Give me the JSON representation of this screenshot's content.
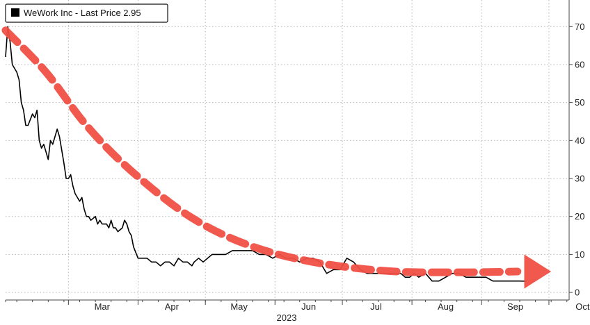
{
  "chart_data": {
    "type": "line",
    "legend": {
      "label": "WeWork Inc - Last Price 2.95",
      "position": "top-left"
    },
    "x_axis": {
      "start": "2023-02-01",
      "end": "2023-10-10",
      "ticks": [
        {
          "label": "Mar",
          "date": "2023-03-01"
        },
        {
          "label": "Apr",
          "date": "2023-04-01"
        },
        {
          "label": "May",
          "date": "2023-05-01"
        },
        {
          "label": "Jun",
          "date": "2023-06-01"
        },
        {
          "label": "Jul",
          "date": "2023-07-01"
        },
        {
          "label": "Aug",
          "date": "2023-08-01"
        },
        {
          "label": "Sep",
          "date": "2023-09-01"
        },
        {
          "label": "Oct",
          "date": "2023-10-01"
        }
      ],
      "year_label": "2023"
    },
    "y_axis": {
      "position": "right",
      "ylim": [
        -2,
        77
      ],
      "ticks": [
        0,
        10,
        20,
        30,
        40,
        50,
        60,
        70
      ]
    },
    "grid": true,
    "series": [
      {
        "name": "WeWork Inc - Last Price 2.95",
        "color": "#000000",
        "x": [
          "2023-02-01",
          "2023-02-02",
          "2023-02-03",
          "2023-02-04",
          "2023-02-06",
          "2023-02-07",
          "2023-02-08",
          "2023-02-09",
          "2023-02-10",
          "2023-02-11",
          "2023-02-13",
          "2023-02-14",
          "2023-02-15",
          "2023-02-16",
          "2023-02-17",
          "2023-02-18",
          "2023-02-20",
          "2023-02-21",
          "2023-02-22",
          "2023-02-24",
          "2023-02-25",
          "2023-02-27",
          "2023-02-28",
          "2023-03-01",
          "2023-03-02",
          "2023-03-03",
          "2023-03-04",
          "2023-03-06",
          "2023-03-07",
          "2023-03-08",
          "2023-03-09",
          "2023-03-10",
          "2023-03-11",
          "2023-03-13",
          "2023-03-14",
          "2023-03-15",
          "2023-03-16",
          "2023-03-18",
          "2023-03-19",
          "2023-03-20",
          "2023-03-21",
          "2023-03-22",
          "2023-03-23",
          "2023-03-25",
          "2023-03-26",
          "2023-03-27",
          "2023-03-28",
          "2023-03-29",
          "2023-03-30",
          "2023-04-01",
          "2023-04-03",
          "2023-04-05",
          "2023-04-07",
          "2023-04-09",
          "2023-04-11",
          "2023-04-13",
          "2023-04-15",
          "2023-04-17",
          "2023-04-19",
          "2023-04-21",
          "2023-04-23",
          "2023-04-25",
          "2023-04-26",
          "2023-04-28",
          "2023-04-30",
          "2023-05-02",
          "2023-05-04",
          "2023-05-06",
          "2023-05-08",
          "2023-05-10",
          "2023-05-13",
          "2023-05-16",
          "2023-05-19",
          "2023-05-22",
          "2023-05-25",
          "2023-05-28",
          "2023-05-31",
          "2023-06-03",
          "2023-06-06",
          "2023-06-09",
          "2023-06-12",
          "2023-06-15",
          "2023-06-18",
          "2023-06-21",
          "2023-06-24",
          "2023-06-27",
          "2023-06-30",
          "2023-07-03",
          "2023-07-06",
          "2023-07-09",
          "2023-07-12",
          "2023-07-15",
          "2023-07-18",
          "2023-07-21",
          "2023-07-24",
          "2023-07-27",
          "2023-07-29",
          "2023-07-31",
          "2023-08-02",
          "2023-08-04",
          "2023-08-07",
          "2023-08-10",
          "2023-08-13",
          "2023-08-16",
          "2023-08-19",
          "2023-08-22",
          "2023-08-25",
          "2023-08-28",
          "2023-08-31",
          "2023-09-03",
          "2023-09-06",
          "2023-09-09",
          "2023-09-12",
          "2023-09-15",
          "2023-09-18",
          "2023-09-21"
        ],
        "y": [
          62,
          70,
          66,
          60,
          58,
          56,
          50,
          48,
          44,
          44,
          47,
          46,
          48,
          40,
          38,
          39,
          35,
          40,
          39,
          43,
          41,
          34,
          30,
          30,
          31,
          28,
          26,
          24,
          25,
          22,
          20,
          20,
          19,
          20,
          18,
          19,
          18,
          18,
          17,
          19,
          17,
          17,
          16,
          17,
          19,
          18,
          16,
          15,
          12,
          9,
          9,
          9,
          8,
          8,
          7,
          8,
          8,
          7,
          9,
          8,
          8,
          7,
          8,
          9,
          8,
          9,
          10,
          10,
          10,
          10,
          11,
          11,
          11,
          11,
          10,
          10,
          9,
          10,
          9,
          9,
          8,
          9,
          9,
          8,
          5,
          6,
          6,
          9,
          8,
          6,
          5,
          5,
          5,
          5,
          5,
          5,
          4,
          4,
          5,
          4,
          5,
          3,
          3,
          4,
          5,
          5,
          4,
          4,
          4,
          4,
          3,
          3,
          3,
          3,
          3,
          2.95
        ]
      }
    ],
    "annotations": [
      {
        "type": "dashed-arrow",
        "color": "#f05046",
        "points": [
          [
            "2023-02-01",
            69
          ],
          [
            "2023-02-19",
            58
          ],
          [
            "2023-03-09",
            44
          ],
          [
            "2023-03-29",
            32
          ],
          [
            "2023-04-24",
            20
          ],
          [
            "2023-05-20",
            12.5
          ],
          [
            "2023-06-18",
            8
          ],
          [
            "2023-07-22",
            5.6
          ],
          [
            "2023-08-24",
            5.3
          ],
          [
            "2023-09-17",
            5.5
          ]
        ],
        "arrowhead": {
          "tip": [
            "2023-10-02",
            5.5
          ],
          "base": "2023-09-20",
          "top": 10.0,
          "bottom": 1.0
        }
      }
    ]
  }
}
